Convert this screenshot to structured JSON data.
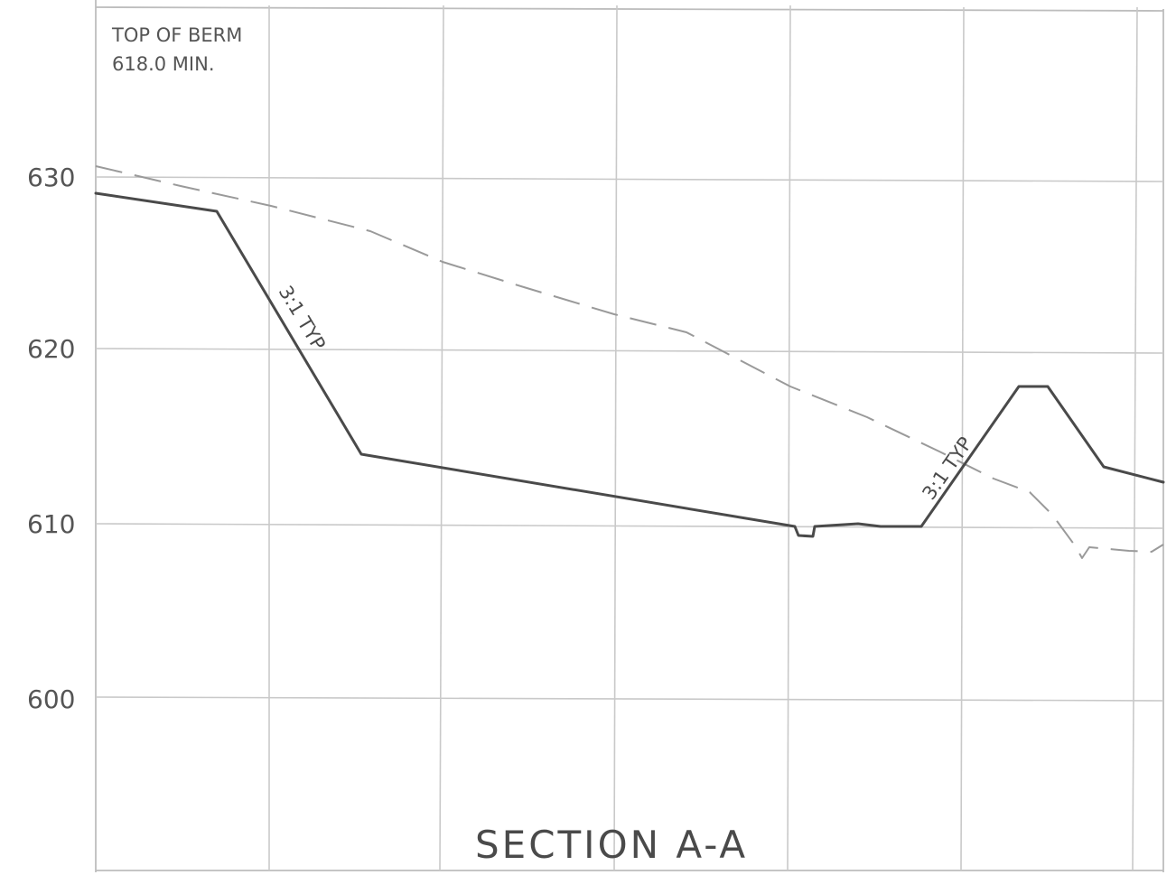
{
  "section_title": "SECTION A-A",
  "berm_note": {
    "line1": "TOP OF BERM",
    "line2": "618.0 MIN."
  },
  "slope_labels": {
    "left": "3:1 TYP",
    "right": "3:1 TYP"
  },
  "elevation_axis": {
    "ticks": [
      {
        "value": 630,
        "label": "630"
      },
      {
        "value": 620,
        "label": "620"
      },
      {
        "value": 610,
        "label": "610"
      },
      {
        "value": 600,
        "label": "600"
      }
    ]
  },
  "colors": {
    "design_grade": "#4a4a4a",
    "existing_grade": "#9a9a9a",
    "grid": "#c9c9c9"
  }
}
